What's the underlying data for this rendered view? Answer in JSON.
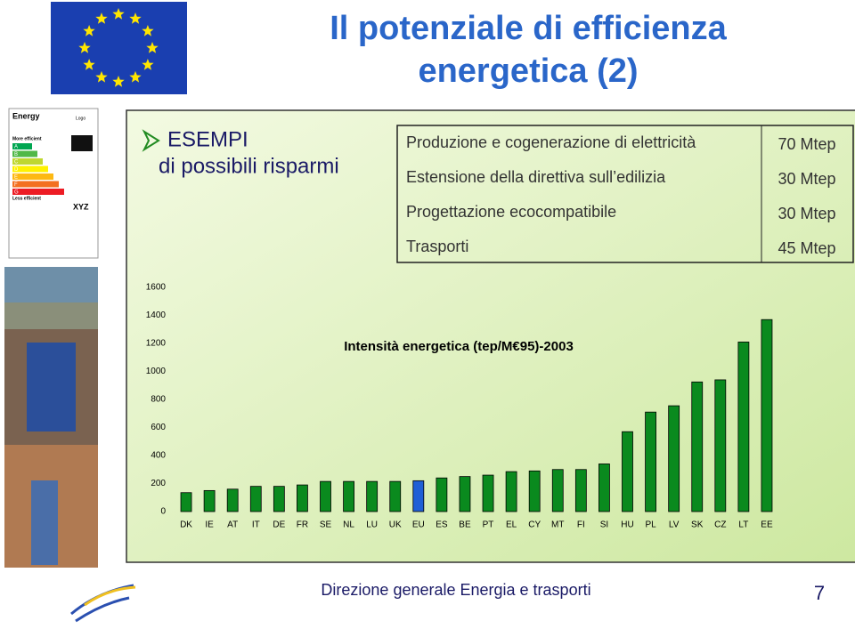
{
  "header": {
    "title_line1": "Il potenziale di efficienza",
    "title_line2": "energetica (2)"
  },
  "bullet": {
    "line1": "ESEMPI",
    "line2": "di possibili risparmi"
  },
  "energy_label": {
    "title": "Energy",
    "more": "More efficient",
    "less": "Less efficient",
    "logo": "Logo",
    "code": "XYZ",
    "classes": [
      "A",
      "B",
      "C",
      "D",
      "E",
      "F",
      "G"
    ]
  },
  "table": {
    "rows": [
      [
        "Produzione e cogenerazione di elettricità",
        "70 Mtep"
      ],
      [
        "Estensione della direttiva sull’edilizia",
        "30 Mtep"
      ],
      [
        "Progettazione ecocompatibile",
        "30 Mtep"
      ],
      [
        "Trasporti",
        "45 Mtep"
      ]
    ]
  },
  "chart_data": {
    "type": "bar",
    "title": "Intensità energetica (tep/M€95)-2003",
    "categories": [
      "DK",
      "IE",
      "AT",
      "IT",
      "DE",
      "FR",
      "SE",
      "NL",
      "LU",
      "UK",
      "EU",
      "ES",
      "BE",
      "PT",
      "EL",
      "CY",
      "MT",
      "FI",
      "SI",
      "HU",
      "PL",
      "LV",
      "SK",
      "CZ",
      "LT",
      "EE"
    ],
    "values": [
      135,
      150,
      160,
      180,
      180,
      190,
      215,
      215,
      215,
      215,
      220,
      240,
      250,
      260,
      285,
      290,
      300,
      300,
      340,
      570,
      710,
      755,
      925,
      940,
      1210,
      1370
    ],
    "colors": [
      "#0a8a1e",
      "#0a8a1e",
      "#0a8a1e",
      "#0a8a1e",
      "#0a8a1e",
      "#0a8a1e",
      "#0a8a1e",
      "#0a8a1e",
      "#0a8a1e",
      "#0a8a1e",
      "#1f5fd6",
      "#0a8a1e",
      "#0a8a1e",
      "#0a8a1e",
      "#0a8a1e",
      "#0a8a1e",
      "#0a8a1e",
      "#0a8a1e",
      "#0a8a1e",
      "#0a8a1e",
      "#0a8a1e",
      "#0a8a1e",
      "#0a8a1e",
      "#0a8a1e",
      "#0a8a1e",
      "#0a8a1e"
    ],
    "ylim": [
      0,
      1600
    ],
    "yticks": [
      0,
      200,
      400,
      600,
      800,
      1000,
      1200,
      1400,
      1600
    ],
    "grid": false
  },
  "footer": {
    "text": "Direzione generale Energia e trasporti",
    "page": "7"
  }
}
